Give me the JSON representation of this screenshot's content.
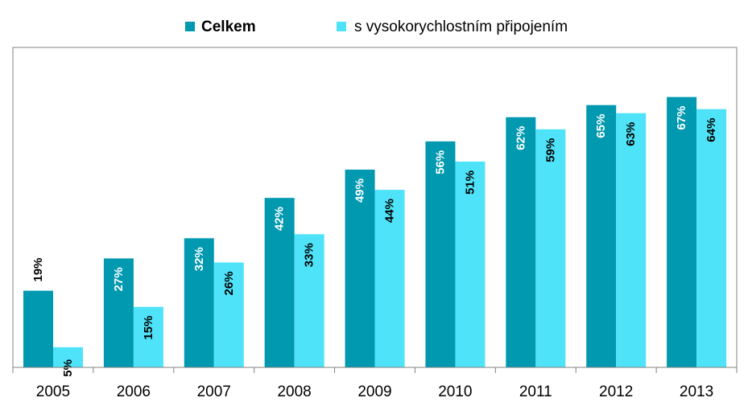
{
  "chart_data": {
    "type": "bar",
    "title": "",
    "xlabel": "",
    "ylabel": "",
    "ylim": [
      0,
      80
    ],
    "grid": false,
    "legend_position": "top-center",
    "categories": [
      "2005",
      "2006",
      "2007",
      "2008",
      "2009",
      "2010",
      "2011",
      "2012",
      "2013"
    ],
    "series": [
      {
        "name": "Celkem",
        "color": "#0099B0",
        "values": [
          19,
          27,
          32,
          42,
          49,
          56,
          62,
          65,
          67
        ],
        "labels": [
          "19%",
          "27%",
          "32%",
          "42%",
          "49%",
          "56%",
          "62%",
          "65%",
          "67%"
        ],
        "label_color": "#ffffff",
        "first_label_color": "#000000"
      },
      {
        "name": "s vysokorychlostním připojením",
        "color": "#4FE3F9",
        "values": [
          5,
          15,
          26,
          33,
          44,
          51,
          59,
          63,
          64
        ],
        "labels": [
          "5%",
          "15%",
          "26%",
          "33%",
          "44%",
          "51%",
          "59%",
          "63%",
          "64%"
        ],
        "label_color": "#000000"
      }
    ]
  }
}
